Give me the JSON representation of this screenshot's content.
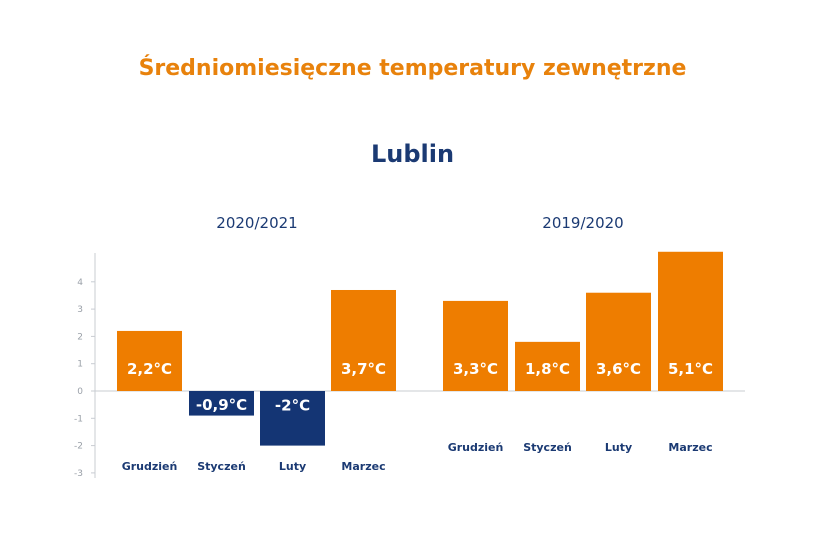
{
  "title": "Średniomiesięczne temperatury zewnętrzne",
  "subtitle": "Lublin",
  "colors": {
    "positive": "#ee7d00",
    "negative": "#143574",
    "axis": "#c8ccd2"
  },
  "chart_data": [
    {
      "type": "bar",
      "group_label": "2020/2021",
      "categories": [
        "Grudzień",
        "Styczeń",
        "Luty",
        "Marzec"
      ],
      "values": [
        2.2,
        -0.9,
        -2,
        3.7
      ],
      "value_labels": [
        "2,2°C",
        "-0,9°C",
        "-2°C",
        "3,7°C"
      ],
      "ylim": [
        -3,
        5
      ],
      "yticks": [
        "-3",
        "-2",
        "-1",
        "0",
        "1",
        "2",
        "3",
        "4"
      ],
      "grid": false
    },
    {
      "type": "bar",
      "group_label": "2019/2020",
      "categories": [
        "Grudzień",
        "Styczeń",
        "Luty",
        "Marzec"
      ],
      "values": [
        3.3,
        1.8,
        3.6,
        5.1
      ],
      "value_labels": [
        "3,3°C",
        "1,8°C",
        "3,6°C",
        "5,1°C"
      ],
      "ylim": [
        -3,
        5
      ],
      "grid": false
    }
  ]
}
